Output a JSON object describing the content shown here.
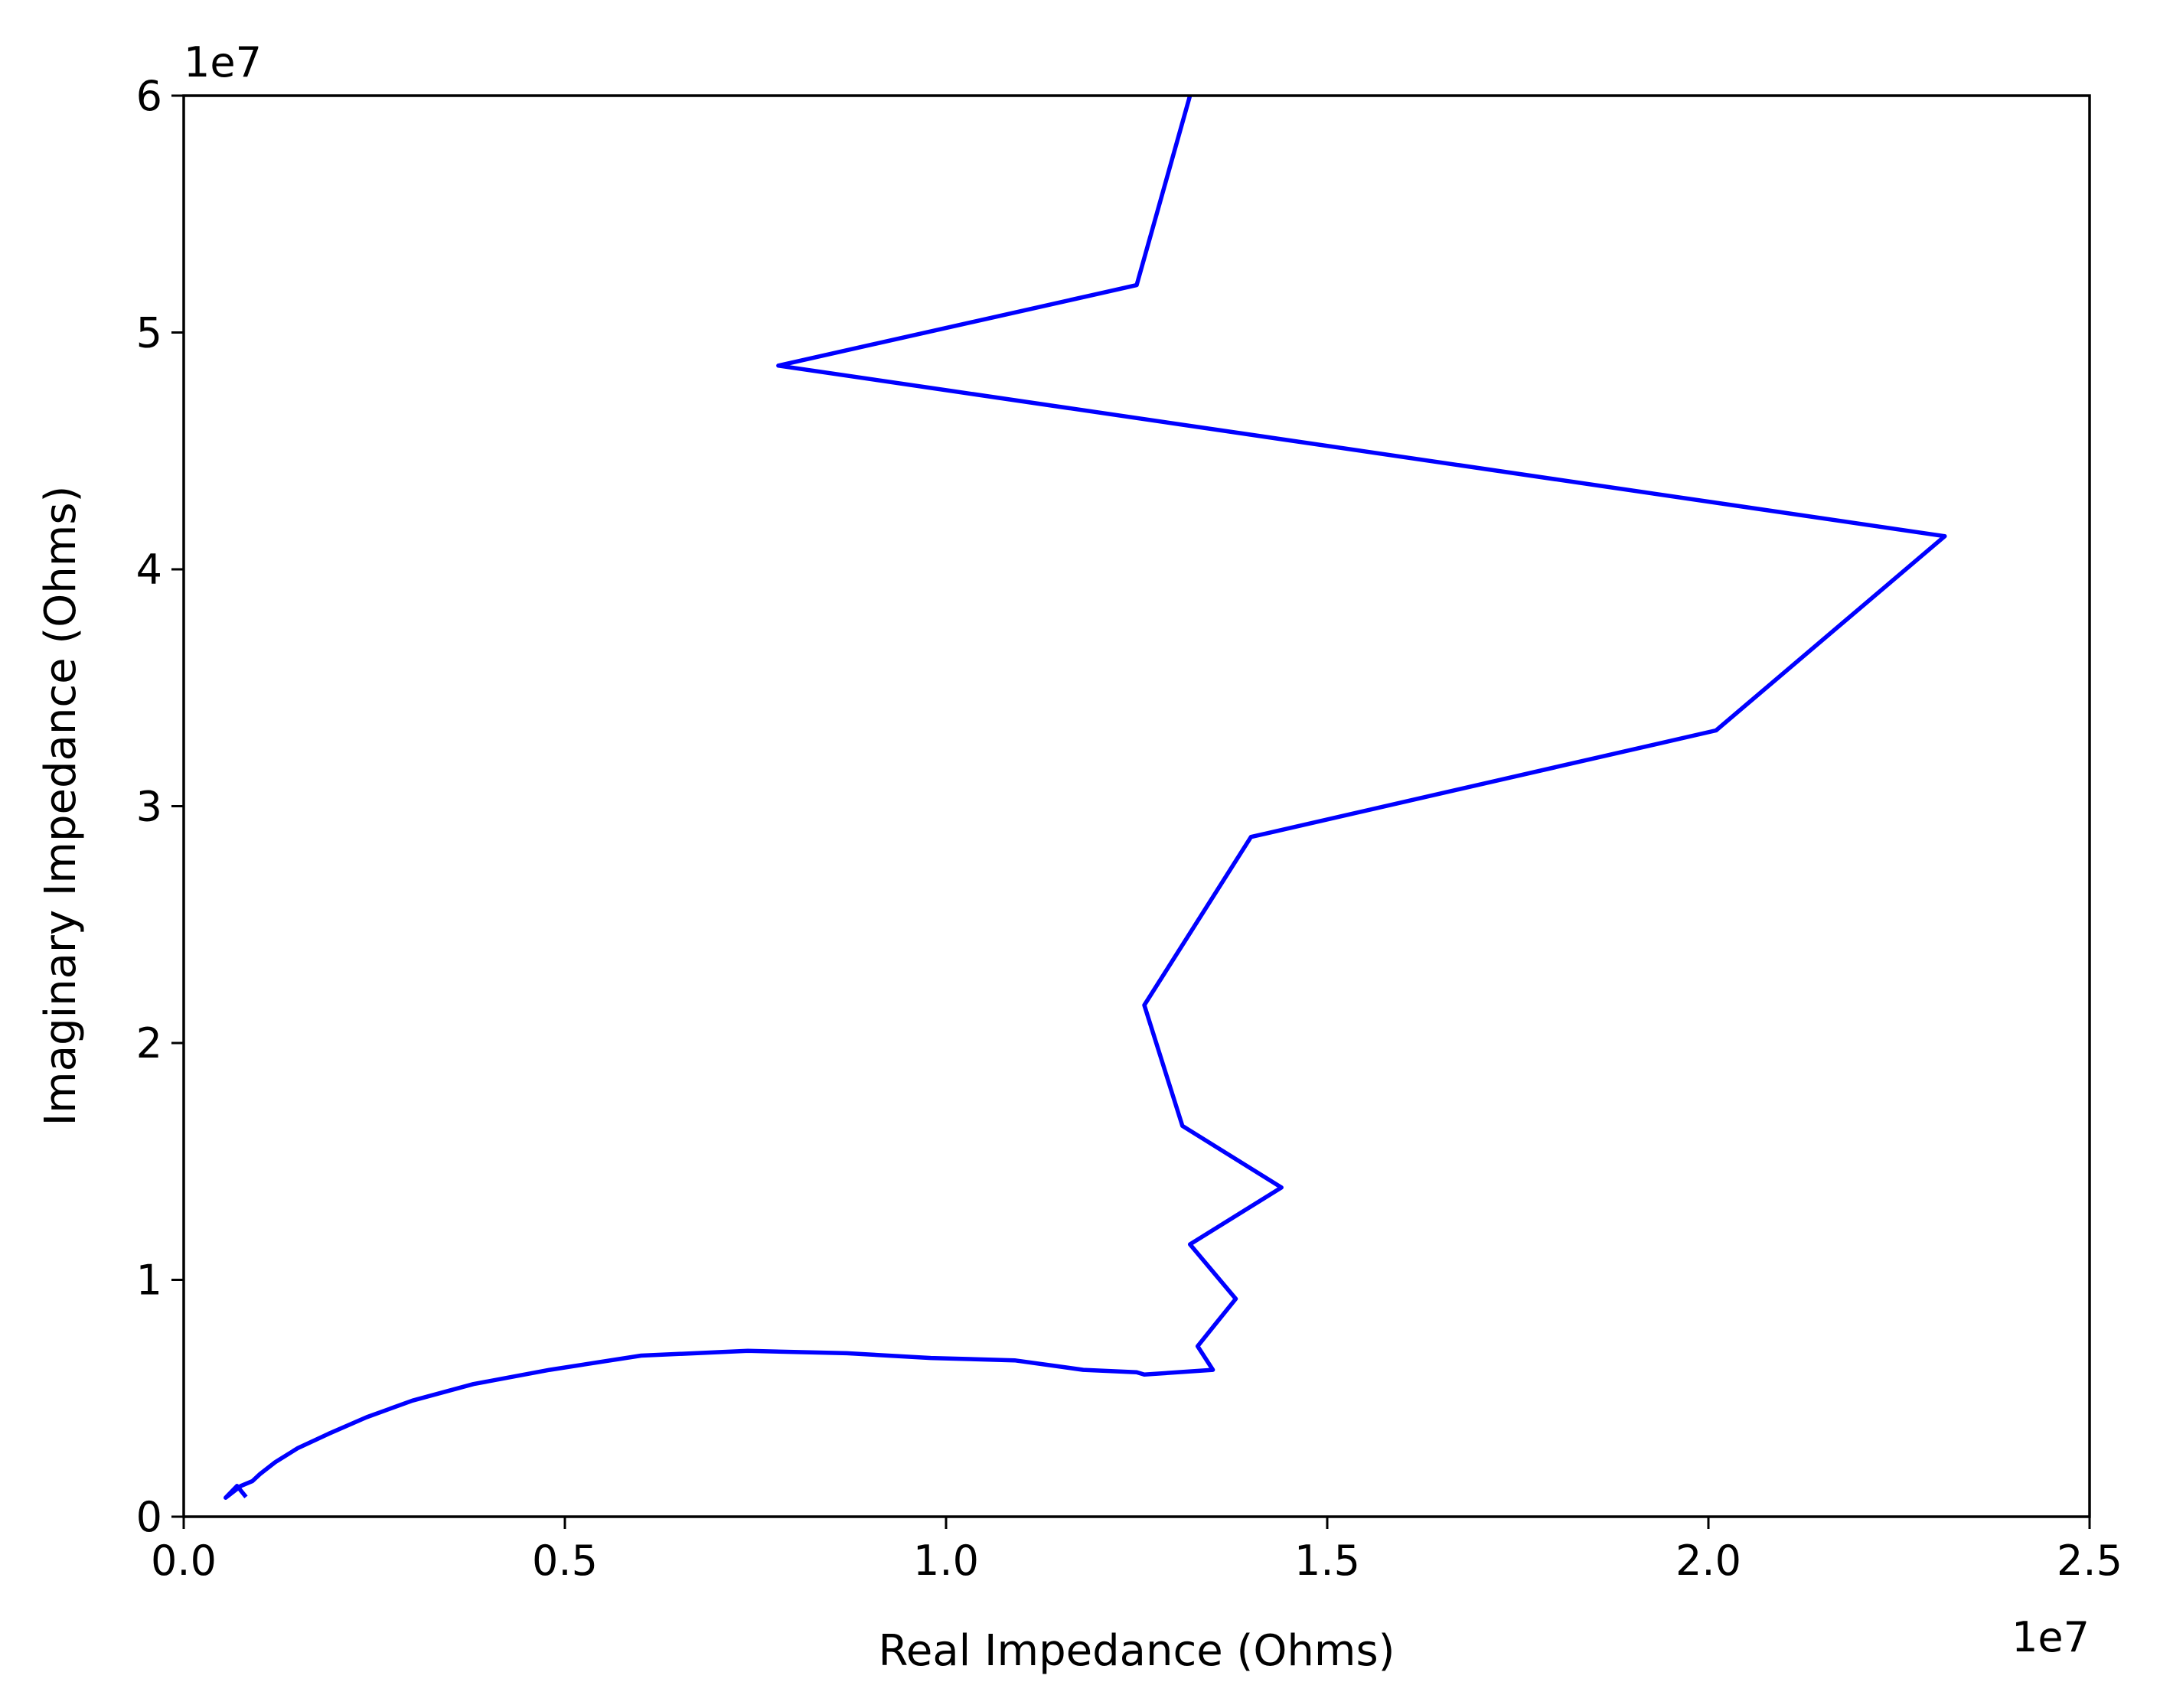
{
  "chart_data": {
    "type": "line",
    "title": "",
    "xlabel": "Real Impedance (Ohms)",
    "ylabel": "Imaginary Impedance (Ohms)",
    "x_offset_text": "1e7",
    "y_offset_text": "1e7",
    "xlim": [
      0,
      25000000
    ],
    "ylim": [
      0,
      60000000
    ],
    "x_ticks": [
      0,
      5000000,
      10000000,
      15000000,
      20000000,
      25000000
    ],
    "x_tick_labels": [
      "0.0",
      "0.5",
      "1.0",
      "1.5",
      "2.0",
      "2.5"
    ],
    "y_ticks": [
      0,
      10000000,
      20000000,
      30000000,
      40000000,
      50000000,
      60000000
    ],
    "y_tick_labels": [
      "0",
      "1",
      "2",
      "3",
      "4",
      "5",
      "6"
    ],
    "grid": false,
    "series": [
      {
        "color": "#0000ff",
        "x": [
          800000,
          700000,
          550000,
          750000,
          900000,
          1000000,
          1200000,
          1500000,
          1900000,
          2400000,
          3000000,
          3800000,
          4800000,
          6000000,
          7400000,
          8700000,
          9800000,
          10900000,
          11800000,
          12500000,
          12600000,
          13500000,
          13300000,
          13500000,
          13800000,
          13200000,
          14400000,
          13100000,
          12600000,
          14000000,
          20100000,
          23100000,
          7800000,
          12500000,
          13200000
        ],
        "y": [
          900000,
          1300000,
          800000,
          1300000,
          1500000,
          1800000,
          2300000,
          2900000,
          3500000,
          4200000,
          4900000,
          5600000,
          6200000,
          6800000,
          7000000,
          6900000,
          6700000,
          6600000,
          6200000,
          6100000,
          6000000,
          6200000,
          7200000,
          8000000,
          9200000,
          11500000,
          13900000,
          16500000,
          21600000,
          28700000,
          33200000,
          41400000,
          48600000,
          52000000,
          60000000
        ]
      }
    ]
  }
}
